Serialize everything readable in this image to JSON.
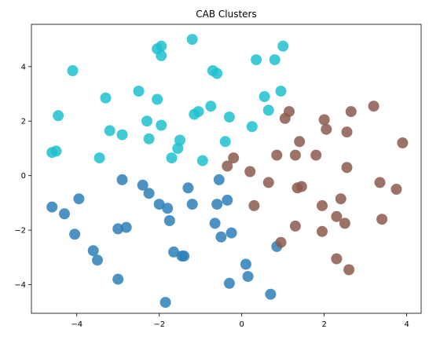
{
  "chart_data": {
    "type": "scatter",
    "title": "CAB Clusters",
    "xlabel": "",
    "ylabel": "",
    "xlim": [
      -5.1,
      4.35
    ],
    "ylim": [
      -5.05,
      5.55
    ],
    "xticks": [
      -4,
      -2,
      0,
      2,
      4
    ],
    "yticks": [
      -4,
      -2,
      0,
      2,
      4
    ],
    "tick_labels": {
      "x": [
        "−4",
        "−2",
        "0",
        "2",
        "4"
      ],
      "y": [
        "−4",
        "−2",
        "0",
        "2",
        "4"
      ]
    },
    "grid": false,
    "legend": false,
    "series": [
      {
        "color": "#2d7fb8",
        "points": [
          [
            -4.6,
            -1.15
          ],
          [
            -4.3,
            -1.4
          ],
          [
            -4.05,
            -2.15
          ],
          [
            -3.95,
            -0.85
          ],
          [
            -3.6,
            -2.75
          ],
          [
            -3.5,
            -3.1
          ],
          [
            -3.0,
            -1.95
          ],
          [
            -3.0,
            -3.8
          ],
          [
            -2.9,
            -0.15
          ],
          [
            -2.8,
            -1.9
          ],
          [
            -2.4,
            -0.35
          ],
          [
            -2.25,
            -0.65
          ],
          [
            -2.0,
            -1.05
          ],
          [
            -1.85,
            -4.65
          ],
          [
            -1.8,
            -1.2
          ],
          [
            -1.75,
            -1.65
          ],
          [
            -1.65,
            -2.8
          ],
          [
            -1.45,
            -2.95
          ],
          [
            -1.4,
            -2.95
          ],
          [
            -1.3,
            -0.45
          ],
          [
            -1.2,
            -1.05
          ],
          [
            -0.65,
            -1.75
          ],
          [
            -0.6,
            -1.05
          ],
          [
            -0.55,
            -0.15
          ],
          [
            -0.5,
            -2.25
          ],
          [
            -0.35,
            -0.9
          ],
          [
            -0.3,
            -3.95
          ],
          [
            -0.25,
            -2.1
          ],
          [
            0.1,
            -3.25
          ],
          [
            0.15,
            -3.7
          ],
          [
            0.7,
            -4.35
          ],
          [
            0.85,
            -2.6
          ]
        ]
      },
      {
        "color": "#1ec1cf",
        "points": [
          [
            -4.6,
            0.85
          ],
          [
            -4.5,
            0.9
          ],
          [
            -4.45,
            2.2
          ],
          [
            -4.1,
            3.85
          ],
          [
            -3.45,
            0.65
          ],
          [
            -3.3,
            2.85
          ],
          [
            -3.2,
            1.65
          ],
          [
            -2.9,
            1.5
          ],
          [
            -2.5,
            3.1
          ],
          [
            -2.3,
            2.0
          ],
          [
            -2.25,
            1.35
          ],
          [
            -2.05,
            2.8
          ],
          [
            -2.05,
            4.65
          ],
          [
            -1.95,
            4.75
          ],
          [
            -1.95,
            4.4
          ],
          [
            -1.95,
            1.85
          ],
          [
            -1.7,
            0.65
          ],
          [
            -1.55,
            1.0
          ],
          [
            -1.5,
            1.3
          ],
          [
            -1.2,
            5.0
          ],
          [
            -1.15,
            2.25
          ],
          [
            -1.05,
            2.35
          ],
          [
            -0.95,
            0.55
          ],
          [
            -0.75,
            2.55
          ],
          [
            -0.7,
            3.85
          ],
          [
            -0.6,
            3.75
          ],
          [
            -0.4,
            1.25
          ],
          [
            -0.3,
            2.15
          ],
          [
            0.25,
            1.8
          ],
          [
            0.35,
            4.25
          ],
          [
            0.55,
            2.9
          ],
          [
            0.65,
            2.4
          ],
          [
            0.8,
            4.25
          ],
          [
            0.95,
            3.1
          ],
          [
            1.0,
            4.75
          ]
        ]
      },
      {
        "color": "#8c5a4e",
        "points": [
          [
            -0.35,
            0.35
          ],
          [
            -0.2,
            0.65
          ],
          [
            0.2,
            0.15
          ],
          [
            0.3,
            -1.1
          ],
          [
            0.65,
            -0.25
          ],
          [
            0.85,
            0.75
          ],
          [
            0.95,
            -2.45
          ],
          [
            1.05,
            2.1
          ],
          [
            1.15,
            2.35
          ],
          [
            1.3,
            -1.85
          ],
          [
            1.3,
            0.75
          ],
          [
            1.35,
            -0.45
          ],
          [
            1.4,
            1.25
          ],
          [
            1.45,
            -0.4
          ],
          [
            1.8,
            0.75
          ],
          [
            1.95,
            -1.1
          ],
          [
            1.95,
            -2.05
          ],
          [
            2.0,
            2.05
          ],
          [
            2.05,
            1.7
          ],
          [
            2.3,
            -1.5
          ],
          [
            2.3,
            -3.05
          ],
          [
            2.4,
            -0.85
          ],
          [
            2.5,
            -1.75
          ],
          [
            2.55,
            0.3
          ],
          [
            2.55,
            1.6
          ],
          [
            2.6,
            -3.45
          ],
          [
            2.65,
            2.35
          ],
          [
            3.2,
            2.55
          ],
          [
            3.35,
            -0.25
          ],
          [
            3.4,
            -1.6
          ],
          [
            3.75,
            -0.5
          ],
          [
            3.9,
            1.2
          ]
        ]
      }
    ]
  }
}
